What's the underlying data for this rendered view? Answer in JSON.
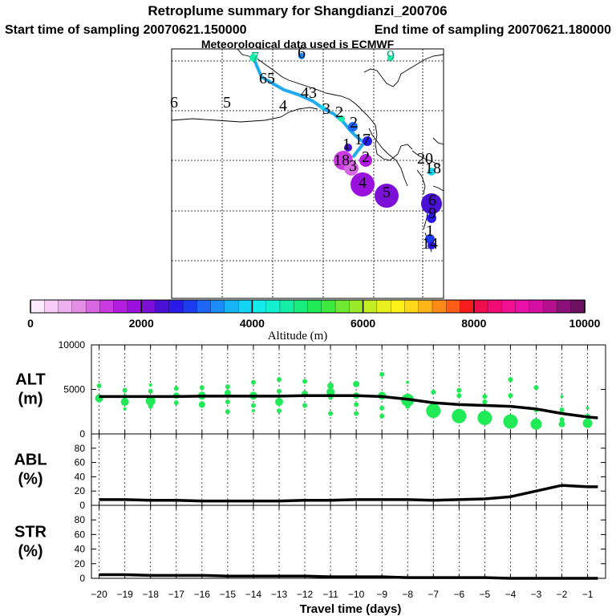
{
  "header": {
    "title": "Retroplume summary for Shangdianzi_200706",
    "start": "Start time of sampling 20070621.150000",
    "end": "End time of sampling 20070621.180000",
    "met": "Meteorological data used is ECMWF"
  },
  "colorbar": {
    "label": "Altitude (m)",
    "ticks": [
      "0",
      "2000",
      "4000",
      "6000",
      "8000",
      "10000"
    ],
    "colors": [
      "#fdeafd",
      "#f7cdf7",
      "#efb0ef",
      "#e38fe6",
      "#d766e3",
      "#c93ae0",
      "#b21ede",
      "#9a10dc",
      "#7d10d6",
      "#4a10d4",
      "#2a1ae8",
      "#1c3cf0",
      "#1e66f6",
      "#1c8cf8",
      "#18b4f8",
      "#14d6f4",
      "#14ecec",
      "#14f0d0",
      "#14eea6",
      "#18ec7c",
      "#20ea56",
      "#3ee83e",
      "#6ee832",
      "#98ea2a",
      "#c4ee24",
      "#e8f01e",
      "#fff21a",
      "#ffd81a",
      "#ffb41a",
      "#ff8a18",
      "#ff5c18",
      "#f81c1c",
      "#ee0e4c",
      "#f00c74",
      "#f01092",
      "#e810a8",
      "#d410a4",
      "#b41090",
      "#8c107a",
      "#6c1060"
    ]
  },
  "map_labels": [
    {
      "t": "7",
      "x": 318,
      "y": 78,
      "c": "#0a7"
    },
    {
      "t": "6",
      "x": 376,
      "y": 72,
      "c": "#000"
    },
    {
      "t": "9",
      "x": 487,
      "y": 76,
      "c": "#0a7"
    },
    {
      "t": "65",
      "x": 333,
      "y": 104,
      "c": "#000"
    },
    {
      "t": "43",
      "x": 385,
      "y": 122,
      "c": "#000"
    },
    {
      "t": "4",
      "x": 353,
      "y": 138,
      "c": "#000"
    },
    {
      "t": "5",
      "x": 283,
      "y": 134,
      "c": "#000"
    },
    {
      "t": "6",
      "x": 217,
      "y": 134,
      "c": "#000"
    },
    {
      "t": "3",
      "x": 407,
      "y": 142,
      "c": "#000"
    },
    {
      "t": "2",
      "x": 423,
      "y": 146,
      "c": "#000"
    },
    {
      "t": "2",
      "x": 441,
      "y": 159,
      "c": "#000"
    },
    {
      "t": "17",
      "x": 452,
      "y": 180,
      "c": "#000"
    },
    {
      "t": "1",
      "x": 432,
      "y": 186,
      "c": "#000"
    },
    {
      "t": "2",
      "x": 456,
      "y": 202,
      "c": "#000"
    },
    {
      "t": "18",
      "x": 426,
      "y": 206,
      "c": "#000"
    },
    {
      "t": "3",
      "x": 440,
      "y": 213,
      "c": "#000"
    },
    {
      "t": "4",
      "x": 452,
      "y": 234,
      "c": "#000"
    },
    {
      "t": "5",
      "x": 482,
      "y": 246,
      "c": "#000"
    },
    {
      "t": "20",
      "x": 530,
      "y": 204,
      "c": "#000"
    },
    {
      "t": "18",
      "x": 540,
      "y": 216,
      "c": "#000"
    },
    {
      "t": "6",
      "x": 539,
      "y": 256,
      "c": "#000"
    },
    {
      "t": "9",
      "x": 539,
      "y": 272,
      "c": "#000"
    },
    {
      "t": "1",
      "x": 536,
      "y": 294,
      "c": "#000"
    },
    {
      "t": "14",
      "x": 536,
      "y": 310,
      "c": "#000"
    }
  ],
  "panels": {
    "alt": {
      "label1": "ALT",
      "label2": "(m)",
      "ticks": [
        "10000",
        "5000",
        "0"
      ]
    },
    "abl": {
      "label1": "ABL",
      "label2": "(%)",
      "ticks": [
        "80",
        "60",
        "40",
        "20",
        "0"
      ]
    },
    "str": {
      "label1": "STR",
      "label2": "(%)",
      "ticks": [
        "80",
        "60",
        "40",
        "20",
        "0"
      ]
    }
  },
  "chart_data": [
    {
      "type": "line",
      "title": "ALT",
      "ylabel": "(m)",
      "ylim": [
        0,
        10000
      ],
      "x": [
        -20,
        -19,
        -18,
        -17,
        -16,
        -15,
        -14,
        -13,
        -12,
        -11,
        -10,
        -9,
        -8,
        -7,
        -6,
        -5,
        -4,
        -3,
        -2,
        -1,
        -0.6
      ],
      "values": [
        4200,
        4200,
        4200,
        4200,
        4250,
        4250,
        4250,
        4250,
        4300,
        4300,
        4300,
        4200,
        3900,
        3500,
        3300,
        3200,
        3100,
        2800,
        2300,
        1900,
        1800
      ],
      "scatter": [
        {
          "x": -20,
          "y": 5400,
          "r": 3
        },
        {
          "x": -20,
          "y": 4000,
          "r": 5
        },
        {
          "x": -20,
          "y": 3800,
          "r": 3
        },
        {
          "x": -19,
          "y": 4900,
          "r": 3
        },
        {
          "x": -19,
          "y": 4200,
          "r": 3
        },
        {
          "x": -19,
          "y": 3600,
          "r": 5
        },
        {
          "x": -19,
          "y": 2800,
          "r": 2
        },
        {
          "x": -18,
          "y": 5500,
          "r": 2
        },
        {
          "x": -18,
          "y": 4800,
          "r": 3
        },
        {
          "x": -18,
          "y": 3700,
          "r": 6
        },
        {
          "x": -18,
          "y": 3100,
          "r": 3
        },
        {
          "x": -17,
          "y": 5100,
          "r": 3
        },
        {
          "x": -17,
          "y": 4300,
          "r": 4
        },
        {
          "x": -17,
          "y": 3500,
          "r": 3
        },
        {
          "x": -16,
          "y": 5200,
          "r": 3
        },
        {
          "x": -16,
          "y": 4300,
          "r": 5
        },
        {
          "x": -16,
          "y": 3300,
          "r": 4
        },
        {
          "x": -15,
          "y": 5300,
          "r": 3
        },
        {
          "x": -15,
          "y": 4600,
          "r": 4
        },
        {
          "x": -15,
          "y": 3600,
          "r": 3
        },
        {
          "x": -15,
          "y": 2500,
          "r": 3
        },
        {
          "x": -14,
          "y": 5800,
          "r": 3
        },
        {
          "x": -14,
          "y": 4300,
          "r": 5
        },
        {
          "x": -14,
          "y": 3200,
          "r": 3
        },
        {
          "x": -14,
          "y": 2600,
          "r": 2
        },
        {
          "x": -13,
          "y": 6100,
          "r": 3
        },
        {
          "x": -13,
          "y": 4800,
          "r": 3
        },
        {
          "x": -13,
          "y": 3600,
          "r": 5
        },
        {
          "x": -13,
          "y": 2600,
          "r": 3
        },
        {
          "x": -12,
          "y": 5900,
          "r": 3
        },
        {
          "x": -12,
          "y": 4500,
          "r": 4
        },
        {
          "x": -12,
          "y": 3200,
          "r": 3
        },
        {
          "x": -11,
          "y": 5400,
          "r": 4
        },
        {
          "x": -11,
          "y": 4700,
          "r": 5
        },
        {
          "x": -11,
          "y": 4100,
          "r": 3
        },
        {
          "x": -11,
          "y": 2300,
          "r": 3
        },
        {
          "x": -10,
          "y": 5600,
          "r": 4
        },
        {
          "x": -10,
          "y": 4300,
          "r": 4
        },
        {
          "x": -10,
          "y": 3300,
          "r": 3
        },
        {
          "x": -10,
          "y": 2300,
          "r": 3
        },
        {
          "x": -9,
          "y": 6700,
          "r": 3
        },
        {
          "x": -9,
          "y": 4300,
          "r": 5
        },
        {
          "x": -9,
          "y": 2900,
          "r": 3
        },
        {
          "x": -9,
          "y": 2000,
          "r": 3
        },
        {
          "x": -8,
          "y": 5800,
          "r": 2
        },
        {
          "x": -8,
          "y": 3800,
          "r": 8
        },
        {
          "x": -8,
          "y": 3100,
          "r": 3
        },
        {
          "x": -7,
          "y": 4700,
          "r": 3
        },
        {
          "x": -7,
          "y": 3300,
          "r": 4
        },
        {
          "x": -7,
          "y": 2600,
          "r": 9
        },
        {
          "x": -6,
          "y": 4900,
          "r": 3
        },
        {
          "x": -6,
          "y": 4300,
          "r": 3
        },
        {
          "x": -6,
          "y": 2000,
          "r": 9
        },
        {
          "x": -5,
          "y": 4200,
          "r": 3
        },
        {
          "x": -5,
          "y": 3600,
          "r": 3
        },
        {
          "x": -5,
          "y": 1800,
          "r": 9
        },
        {
          "x": -4,
          "y": 6100,
          "r": 3
        },
        {
          "x": -4,
          "y": 4300,
          "r": 3
        },
        {
          "x": -4,
          "y": 1400,
          "r": 9
        },
        {
          "x": -3,
          "y": 5200,
          "r": 3
        },
        {
          "x": -3,
          "y": 2700,
          "r": 3
        },
        {
          "x": -3,
          "y": 1100,
          "r": 7
        },
        {
          "x": -2,
          "y": 4200,
          "r": 2
        },
        {
          "x": -2,
          "y": 2700,
          "r": 3
        },
        {
          "x": -2,
          "y": 1600,
          "r": 3
        },
        {
          "x": -2,
          "y": 1100,
          "r": 4
        },
        {
          "x": -1,
          "y": 2900,
          "r": 2
        },
        {
          "x": -1,
          "y": 2000,
          "r": 3
        },
        {
          "x": -1,
          "y": 1200,
          "r": 6
        }
      ]
    },
    {
      "type": "line",
      "title": "ABL",
      "ylabel": "(%)",
      "ylim": [
        0,
        100
      ],
      "x": [
        -20,
        -19,
        -18,
        -17,
        -16,
        -15,
        -14,
        -13,
        -12,
        -11,
        -10,
        -9,
        -8,
        -7,
        -6,
        -5,
        -4,
        -3,
        -2,
        -1,
        -0.6
      ],
      "values": [
        8,
        8,
        7,
        7,
        6,
        6,
        6,
        6,
        7,
        7,
        8,
        8,
        8,
        7,
        8,
        9,
        12,
        20,
        28,
        26,
        26
      ]
    },
    {
      "type": "line",
      "title": "STR",
      "ylabel": "(%)",
      "ylim": [
        0,
        100
      ],
      "x": [
        -20,
        -19,
        -18,
        -17,
        -16,
        -15,
        -14,
        -13,
        -12,
        -11,
        -10,
        -9,
        -8,
        -7,
        -6,
        -5,
        -4,
        -3,
        -2,
        -1,
        -0.6
      ],
      "values": [
        5,
        5,
        4,
        4,
        4,
        3,
        3,
        3,
        3,
        2,
        2,
        2,
        1,
        1,
        1,
        1,
        0,
        0,
        0,
        0,
        0
      ]
    }
  ],
  "xaxis": {
    "label": "Travel time (days)",
    "ticks": [
      "−20",
      "−19",
      "−18",
      "−17",
      "−16",
      "−15",
      "−14",
      "−13",
      "−12",
      "−11",
      "−10",
      "−9",
      "−8",
      "−7",
      "−6",
      "−5",
      "−4",
      "−3",
      "−2",
      "−1"
    ]
  }
}
